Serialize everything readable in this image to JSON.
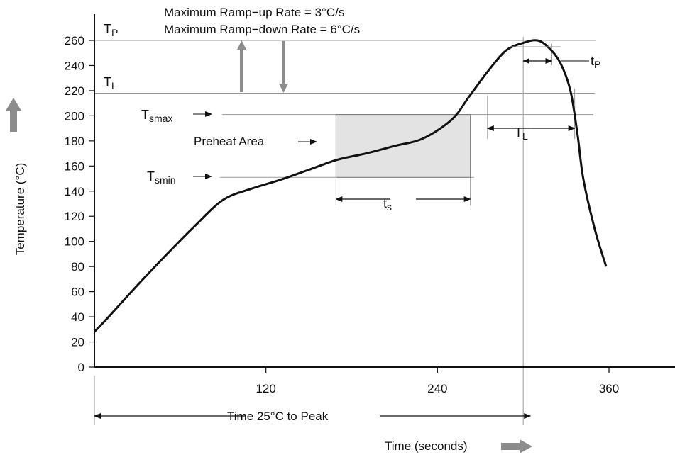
{
  "chart_data": {
    "type": "line",
    "xlabel": "Time (seconds)",
    "ylabel": "Temperature (°C)",
    "xlim": [
      0,
      360
    ],
    "ylim": [
      0,
      265
    ],
    "x_ticks": [
      120,
      240,
      360
    ],
    "y_ticks": [
      0,
      20,
      40,
      60,
      80,
      100,
      120,
      140,
      160,
      180,
      200,
      220,
      240,
      260
    ],
    "series": [
      {
        "x": [
          0,
          10,
          30,
          50,
          70,
          90,
          110,
          130,
          150,
          170,
          190,
          210,
          230,
          250,
          262,
          275,
          288,
          300,
          310,
          318,
          326,
          333,
          338,
          342,
          350,
          358
        ],
        "y": [
          28,
          40,
          65,
          89,
          112,
          133,
          142,
          149,
          157,
          165,
          170,
          176,
          182,
          197,
          215,
          235,
          252,
          258,
          260,
          254,
          242,
          220,
          185,
          150,
          110,
          80
        ]
      }
    ],
    "reference_lines_y": [
      260,
      218,
      201,
      151
    ],
    "annotations": {
      "ramp_up": "Maximum Ramp−up Rate = 3°C/s",
      "ramp_down": "Maximum Ramp−down Rate = 6°C/s",
      "tp_label": "T",
      "tp_sub": "P",
      "tl_label": "T",
      "tl_sub": "L",
      "tsmax_label": "T",
      "tsmax_sub": "smax",
      "tsmin_label": "T",
      "tsmin_sub": "smin",
      "preheat_label": "Preheat Area",
      "ts_label": "t",
      "ts_sub": "s",
      "tl_dur_label": "T",
      "tl_dur_sub": "L",
      "tp_dur_label": "t",
      "tp_dur_sub": "P",
      "peak_time_label": "Time 25°C to Peak"
    },
    "preheat_region": {
      "x_start": 169,
      "x_end": 263,
      "y_min": 151,
      "y_max": 201
    },
    "ts_span": [
      169,
      263
    ],
    "tl_span": [
      275,
      336
    ],
    "tp_span": [
      300,
      320
    ],
    "peak_time_span": [
      0,
      305
    ],
    "colors": {
      "curve": "#111111",
      "preheat_fill": "#e3e3e3",
      "arrow_grey": "#909090",
      "grid": "#9a9a9a"
    }
  }
}
